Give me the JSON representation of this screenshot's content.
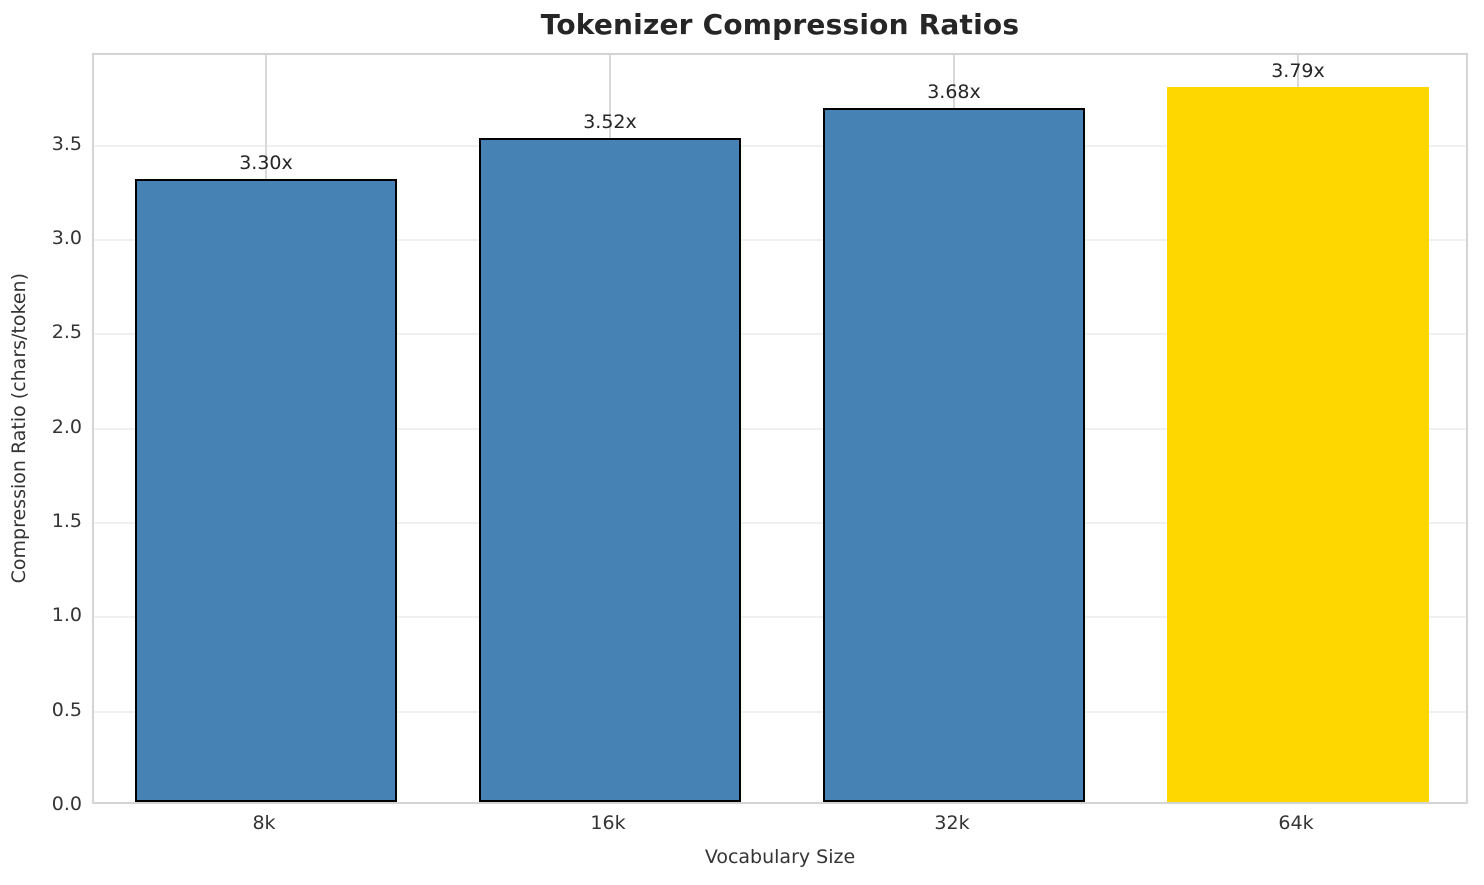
{
  "chart_data": {
    "type": "bar",
    "title": "Tokenizer Compression Ratios",
    "xlabel": "Vocabulary Size",
    "ylabel": "Compression Ratio (chars/token)",
    "categories": [
      "8k",
      "16k",
      "32k",
      "64k"
    ],
    "values": [
      3.3,
      3.52,
      3.68,
      3.79
    ],
    "bar_labels": [
      "3.30x",
      "3.52x",
      "3.68x",
      "3.79x"
    ],
    "highlight_index": 3,
    "ylim": [
      0,
      3.98
    ],
    "ytick_values": [
      0.0,
      0.5,
      1.0,
      1.5,
      2.0,
      2.5,
      3.0,
      3.5
    ],
    "ytick_labels": [
      "0.0",
      "0.5",
      "1.0",
      "1.5",
      "2.0",
      "2.5",
      "3.0",
      "3.5"
    ],
    "grid": true,
    "legend_position": "none",
    "colors": {
      "bar_default": "#4682B4",
      "bar_highlight": "#FFD700",
      "bar_edge": "#000000",
      "grid_horizontal": "#f0f0f0",
      "grid_vertical": "#d9d9d9",
      "frame": "#d4d4d4",
      "title_text": "#262626",
      "axis_text": "#343434"
    }
  }
}
